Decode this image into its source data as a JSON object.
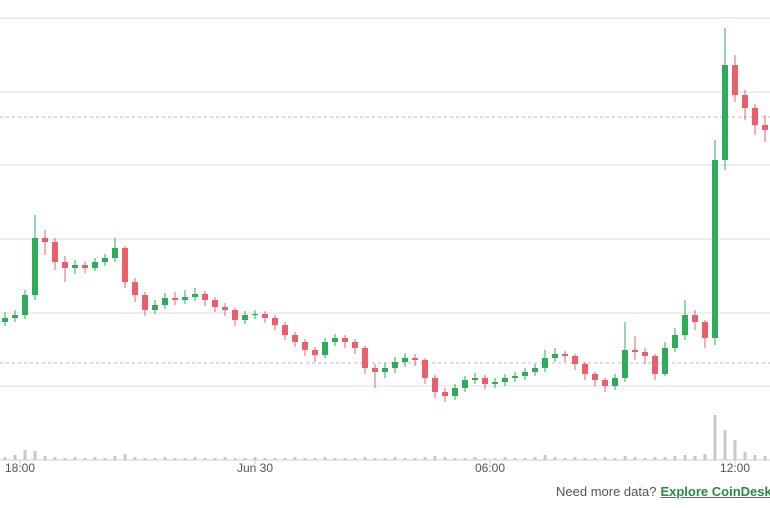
{
  "chart_data": {
    "type": "candlestick",
    "open": [
      138,
      142,
      145,
      165,
      222,
      218,
      198,
      192,
      195,
      192,
      198,
      202,
      212,
      178,
      165,
      150,
      155,
      162,
      160,
      163,
      166,
      160,
      153,
      150,
      140,
      145,
      146,
      142,
      135,
      125,
      118,
      110,
      105,
      118,
      122,
      118,
      112,
      92,
      88,
      92,
      98,
      102,
      100,
      82,
      68,
      64,
      72,
      80,
      82,
      76,
      78,
      82,
      84,
      88,
      92,
      102,
      106,
      104,
      96,
      86,
      80,
      74,
      82,
      110,
      108,
      104,
      86,
      112,
      125,
      145,
      138,
      122,
      300,
      395,
      365,
      352,
      335
    ],
    "high": [
      148,
      150,
      170,
      245,
      230,
      222,
      204,
      200,
      199,
      202,
      206,
      222,
      214,
      182,
      168,
      160,
      167,
      168,
      170,
      172,
      169,
      163,
      157,
      152,
      149,
      150,
      149,
      145,
      138,
      128,
      121,
      113,
      122,
      126,
      125,
      121,
      114,
      96,
      97,
      103,
      107,
      106,
      102,
      85,
      72,
      76,
      84,
      87,
      85,
      82,
      86,
      88,
      92,
      96,
      110,
      112,
      109,
      106,
      98,
      88,
      82,
      86,
      138,
      124,
      112,
      106,
      118,
      132,
      160,
      150,
      140,
      320,
      432,
      405,
      370,
      356,
      345
    ],
    "low": [
      134,
      138,
      141,
      160,
      205,
      190,
      178,
      186,
      187,
      189,
      194,
      198,
      172,
      158,
      144,
      146,
      151,
      155,
      156,
      159,
      154,
      148,
      144,
      134,
      136,
      141,
      137,
      130,
      120,
      113,
      104,
      98,
      102,
      114,
      112,
      106,
      86,
      72,
      82,
      87,
      93,
      94,
      76,
      62,
      58,
      60,
      68,
      76,
      71,
      72,
      74,
      78,
      80,
      84,
      88,
      98,
      98,
      90,
      80,
      74,
      68,
      70,
      78,
      100,
      96,
      80,
      84,
      108,
      120,
      130,
      112,
      115,
      290,
      358,
      340,
      325,
      318
    ],
    "close": [
      142,
      145,
      165,
      222,
      218,
      198,
      192,
      195,
      192,
      198,
      202,
      212,
      178,
      165,
      150,
      155,
      162,
      160,
      163,
      166,
      160,
      153,
      150,
      140,
      145,
      146,
      142,
      135,
      125,
      118,
      110,
      105,
      118,
      122,
      118,
      112,
      92,
      88,
      92,
      98,
      102,
      100,
      82,
      68,
      64,
      72,
      80,
      82,
      76,
      78,
      82,
      84,
      88,
      92,
      102,
      106,
      104,
      96,
      86,
      80,
      74,
      82,
      110,
      108,
      104,
      86,
      112,
      125,
      145,
      138,
      122,
      300,
      395,
      365,
      352,
      335,
      330
    ],
    "volume": [
      3,
      5,
      10,
      9,
      4,
      3,
      2,
      3,
      2,
      3,
      2,
      4,
      6,
      3,
      2,
      2,
      3,
      2,
      2,
      3,
      2,
      2,
      3,
      2,
      2,
      3,
      2,
      2,
      2,
      3,
      2,
      2,
      3,
      2,
      2,
      2,
      3,
      2,
      2,
      3,
      2,
      2,
      3,
      4,
      3,
      2,
      2,
      3,
      2,
      2,
      3,
      2,
      2,
      3,
      5,
      3,
      2,
      3,
      2,
      2,
      3,
      2,
      4,
      3,
      2,
      3,
      3,
      4,
      5,
      4,
      6,
      45,
      30,
      20,
      8,
      5,
      4
    ],
    "up_color": "#2eab5b",
    "down_color": "#e8606b",
    "volume_color": "#c8c8c8",
    "ylim": [
      0,
      460
    ],
    "yticks": [
      74,
      147,
      221,
      295,
      368,
      442
    ],
    "grid": true,
    "reference_lines": [
      343,
      97
    ],
    "vlim": [
      0,
      50
    ],
    "xticks": [
      {
        "value": 1.5,
        "label": "18:00"
      },
      {
        "value": 25,
        "label": "Jun 30"
      },
      {
        "value": 48.5,
        "label": "06:00"
      },
      {
        "value": 73,
        "label": "12:00"
      }
    ]
  },
  "footer": {
    "question": "Need more data?",
    "link": "Explore CoinDesk'"
  }
}
